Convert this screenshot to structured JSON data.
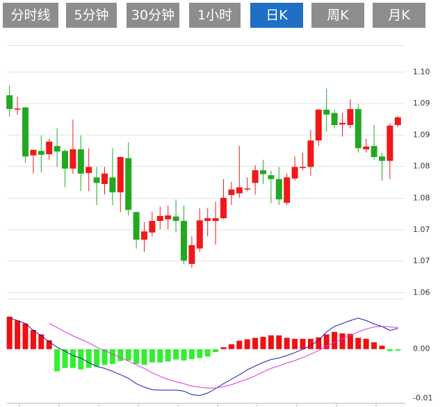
{
  "tabs": [
    "分时线",
    "5分钟",
    "30分钟",
    "1小时",
    "日K",
    "周K",
    "月K"
  ],
  "active_tab": 4,
  "chart_data": [
    {
      "type": "candlestick",
      "up_color": "#f01818",
      "down_color": "#22a822",
      "grid": true,
      "open": [
        1.0958,
        1.0932,
        1.0936,
        1.0849,
        1.0857,
        1.0851,
        1.0866,
        1.0857,
        1.0825,
        1.086,
        1.0817,
        1.0809,
        1.0797,
        1.0809,
        1.0782,
        1.0844,
        1.0746,
        1.0696,
        1.0709,
        1.073,
        1.0733,
        1.0738,
        1.073,
        1.0652,
        1.068,
        1.073,
        1.073,
        1.0735,
        1.0777,
        1.078,
        1.0788,
        1.0799,
        1.0822,
        1.0813,
        1.0806,
        1.0763,
        1.0807,
        1.0826,
        1.0828,
        1.0876,
        1.0932,
        1.0926,
        1.0905,
        1.0904,
        1.0933,
        1.086,
        1.0866,
        1.0847,
        1.0839,
        1.0904
      ],
      "close": [
        1.0933,
        1.0934,
        1.0847,
        1.0859,
        1.085,
        1.0874,
        1.0856,
        1.0825,
        1.086,
        1.0816,
        1.0828,
        1.0799,
        1.0816,
        1.0782,
        1.0846,
        1.075,
        1.0696,
        1.0711,
        1.073,
        1.0739,
        1.074,
        1.073,
        1.0658,
        1.0686,
        1.0731,
        1.0735,
        1.0735,
        1.0772,
        1.0787,
        1.0791,
        1.0789,
        1.0822,
        1.0815,
        1.0806,
        1.0769,
        1.0809,
        1.0828,
        1.0828,
        1.0876,
        1.0932,
        1.0923,
        1.0904,
        1.0908,
        1.0933,
        1.0862,
        1.0865,
        1.0846,
        1.0839,
        1.0903,
        1.0918
      ],
      "high": [
        1.0976,
        1.0955,
        1.0937,
        1.086,
        1.0885,
        1.0879,
        1.0898,
        1.086,
        1.0914,
        1.0885,
        1.0862,
        1.0828,
        1.0828,
        1.0862,
        1.0847,
        1.0873,
        1.0747,
        1.0728,
        1.0746,
        1.0756,
        1.0758,
        1.0769,
        1.0758,
        1.0702,
        1.0753,
        1.0753,
        1.0765,
        1.0806,
        1.0801,
        1.0866,
        1.0809,
        1.0831,
        1.0841,
        1.0821,
        1.0828,
        1.0816,
        1.0847,
        1.0854,
        1.0895,
        1.0933,
        1.097,
        1.0932,
        1.0926,
        1.0951,
        1.0942,
        1.0879,
        1.0904,
        1.0854,
        1.0907,
        1.0921
      ],
      "low": [
        1.0919,
        1.0923,
        1.0835,
        1.0816,
        1.0818,
        1.0841,
        1.0828,
        1.0791,
        1.0816,
        1.0784,
        1.0784,
        1.0759,
        1.0778,
        1.0759,
        1.0746,
        1.074,
        1.068,
        1.0674,
        1.0702,
        1.0715,
        1.0715,
        1.0709,
        1.0652,
        1.0645,
        1.0674,
        1.0702,
        1.0687,
        1.0733,
        1.0759,
        1.0772,
        1.0784,
        1.0778,
        1.0797,
        1.0762,
        1.0759,
        1.0759,
        1.0803,
        1.0822,
        1.0812,
        1.0866,
        1.0892,
        1.0898,
        1.0883,
        1.0898,
        1.0854,
        1.0854,
        1.0841,
        1.0803,
        1.0806,
        1.09
      ],
      "ylim": [
        1.0589,
        1.1049
      ],
      "yticks": [
        1.06,
        {
          "value": 1.0657,
          "label": "1.07"
        },
        {
          "value": 1.0714,
          "label": "1.07"
        },
        {
          "value": 1.0771,
          "label": "1.08"
        },
        {
          "value": 1.0829,
          "label": "1.08"
        },
        {
          "value": 1.0886,
          "label": "1.09"
        },
        {
          "value": 1.0943,
          "label": "1.09"
        },
        {
          "value": 1.1,
          "label": "1.10"
        }
      ]
    },
    {
      "type": "macd",
      "up_color": "#f01010",
      "down_color": "#33ee33",
      "histogram": [
        0.0066,
        0.0058,
        0.0052,
        0.0039,
        0.003,
        0.0018,
        -0.0045,
        -0.0038,
        -0.0038,
        -0.0041,
        -0.0038,
        -0.0035,
        -0.0032,
        -0.003,
        -0.0024,
        -0.0023,
        -0.003,
        -0.0032,
        -0.0027,
        -0.0027,
        -0.0025,
        -0.0021,
        -0.0023,
        -0.002,
        -0.0018,
        -0.0015,
        -0.0006,
        0.0004,
        0.001,
        0.0017,
        0.002,
        0.0023,
        0.0025,
        0.0028,
        0.0028,
        0.0023,
        0.0021,
        0.0021,
        0.0021,
        0.0024,
        0.003,
        0.0035,
        0.0032,
        0.0031,
        0.0023,
        0.0021,
        0.0014,
        0.0007,
        -0.0004,
        -0.0003
      ],
      "series": [
        {
          "color": "#1a1aa8",
          "values": [
            0.0063,
            0.0058,
            0.0052,
            0.0038,
            0.0027,
            0.0015,
            0.0004,
            -0.0004,
            -0.0013,
            -0.0018,
            -0.0027,
            -0.0035,
            -0.0039,
            -0.0045,
            -0.0052,
            -0.0059,
            -0.007,
            -0.0077,
            -0.0082,
            -0.0083,
            -0.0083,
            -0.0083,
            -0.0085,
            -0.0092,
            -0.0094,
            -0.0089,
            -0.008,
            -0.007,
            -0.0061,
            -0.0052,
            -0.0042,
            -0.0034,
            -0.0027,
            -0.0021,
            -0.0018,
            -0.0013,
            -0.0007,
            0,
            0.0007,
            0.0018,
            0.0035,
            0.0046,
            0.0052,
            0.0058,
            0.0063,
            0.0058,
            0.0051,
            0.0046,
            0.0038,
            0.0042
          ]
        },
        {
          "color": "#e030e0",
          "values": [
            null,
            null,
            null,
            null,
            null,
            0.0052,
            0.0044,
            0.0035,
            0.0027,
            0.002,
            0.0013,
            0.0004,
            -0.0003,
            -0.001,
            -0.0017,
            -0.0024,
            -0.0032,
            -0.0039,
            -0.0048,
            -0.0055,
            -0.0061,
            -0.0066,
            -0.007,
            -0.0075,
            -0.0077,
            -0.0079,
            -0.0079,
            -0.0076,
            -0.0072,
            -0.0066,
            -0.0061,
            -0.0054,
            -0.0046,
            -0.0039,
            -0.0034,
            -0.0028,
            -0.0023,
            -0.0017,
            -0.001,
            -0.0003,
            0.0006,
            0.0014,
            0.0021,
            0.0028,
            0.0035,
            0.0041,
            0.0045,
            0.0046,
            0.0045,
            0.0044
          ]
        }
      ],
      "ylim": [
        -0.0106,
        0.007
      ],
      "yticks": [
        {
          "value": 0,
          "label": "0.00"
        },
        {
          "value": -0.01,
          "label": "-0.01"
        }
      ]
    }
  ]
}
